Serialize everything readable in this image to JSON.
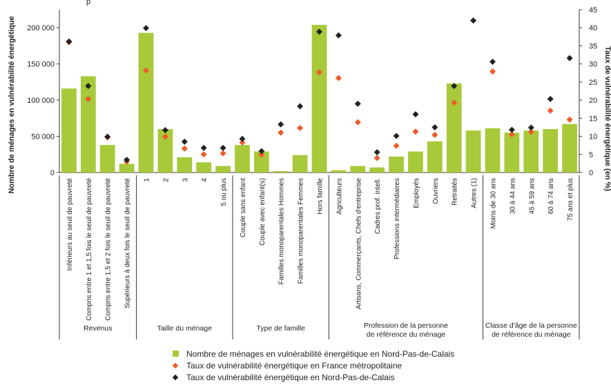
{
  "chart_data": {
    "type": "bar",
    "title": "",
    "ylabel": "Nombre de ménages en vulnérabilité énergétique",
    "y2label": "Taux de vulnérabilité énergétique (en %)",
    "ylim": [
      0,
      225000
    ],
    "y2lim": [
      0,
      45
    ],
    "yticks": [
      "0",
      "50 000",
      "100 000",
      "150 000",
      "200 000"
    ],
    "yticks_values": [
      0,
      50000,
      100000,
      150000,
      200000
    ],
    "y2ticks": [
      0,
      5,
      10,
      15,
      20,
      25,
      30,
      35,
      40,
      45
    ],
    "top_label": "p",
    "categories": [
      "Inférieurs au seuil de pauvreté",
      "Compris entre 1 et 1,5 fois le seuil de pauvreté",
      "Compris entre 1,5 et 2 fois le seuil de pauvreté",
      "Supérieurs à deux fois le seuil de pauvreté",
      "1",
      "2",
      "3",
      "4",
      "5 ou plus",
      "Couple sans enfant",
      "Couple avec enfant(s)",
      "Familles monoparentales Hommes",
      "Familles monoparentales Femmes",
      "Hors famille",
      "Agriculteurs",
      "Artisans, Commerçants, Chefs d'entreprise",
      "Cadres prof. intell.",
      "Professions intermédiaires",
      "Employés",
      "Ouvriers",
      "Retraités",
      "Autres (1)",
      "Moins de 30 ans",
      "30 à 44 ans",
      "45 à 59 ans",
      "60 à 74 ans",
      "75 ans et plus"
    ],
    "groups": [
      {
        "label": "Revenus",
        "count": 4
      },
      {
        "label": "Taille du ménage",
        "count": 5
      },
      {
        "label": "Type de famille",
        "count": 5
      },
      {
        "label": "Profession de la personne\nde référence du ménage",
        "count": 8
      },
      {
        "label": "Classe d'âge de la personne\nde référence du ménage",
        "count": 5
      }
    ],
    "series": [
      {
        "name": "Nombre de ménages en vulnérabilité énergétique en Nord-Pas-de-Calais",
        "type": "bar",
        "axis": "left",
        "color": "#a8c93a",
        "values": [
          116000,
          133000,
          38000,
          12000,
          193000,
          60000,
          21000,
          14000,
          9000,
          38000,
          29000,
          2000,
          24000,
          204000,
          3000,
          9000,
          7000,
          22000,
          29000,
          43000,
          123000,
          58000,
          61000,
          55000,
          58000,
          60000,
          67000
        ]
      },
      {
        "name": "Taux de vulnérabilité énergétique en France métropolitaine",
        "type": "scatter",
        "axis": "right",
        "marker": "diamond",
        "color": "#f05a28",
        "values": [
          36,
          20.3,
          9.7,
          3,
          28.2,
          9.9,
          6.6,
          5,
          5.3,
          8.3,
          4.9,
          11,
          12.3,
          27.7,
          26.1,
          13.9,
          4,
          7.4,
          11.3,
          10.4,
          19.3,
          42,
          27.9,
          10.5,
          11.2,
          17.1,
          14.6
        ]
      },
      {
        "name": "Taux de vulnérabilité énergétique en Nord-Pas-de-Calais",
        "type": "scatter",
        "axis": "right",
        "marker": "diamond",
        "color": "#222222",
        "values": [
          36.2,
          23.9,
          9.9,
          3.5,
          39.9,
          11.7,
          8.5,
          6.8,
          6.8,
          9.3,
          5.9,
          13.3,
          18.3,
          38.9,
          37.9,
          19,
          5.6,
          10.1,
          16.1,
          12.5,
          23.9,
          42,
          30.6,
          11.8,
          12.4,
          20.3,
          31.6
        ]
      }
    ],
    "grid": false,
    "legend_position": "bottom"
  }
}
